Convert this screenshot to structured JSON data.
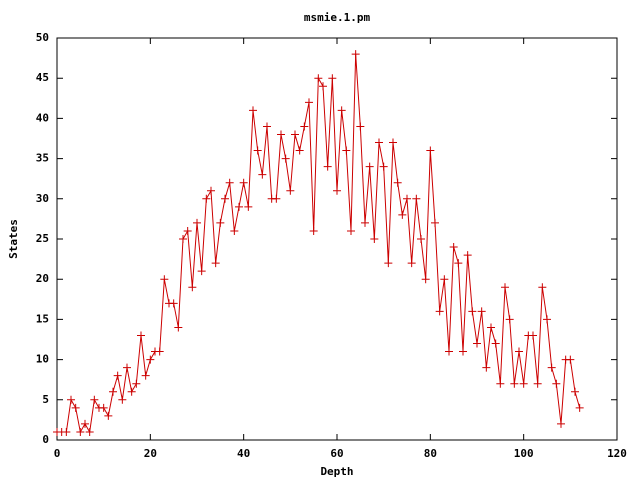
{
  "chart_data": {
    "type": "line",
    "title": "msmie.1.pm",
    "x_label": "Depth",
    "y_label": "States",
    "x": [
      0,
      1,
      2,
      3,
      4,
      5,
      6,
      7,
      8,
      9,
      10,
      11,
      12,
      13,
      14,
      15,
      16,
      17,
      18,
      19,
      20,
      21,
      22,
      23,
      24,
      25,
      26,
      27,
      28,
      29,
      30,
      31,
      32,
      33,
      34,
      35,
      36,
      37,
      38,
      39,
      40,
      41,
      42,
      43,
      44,
      45,
      46,
      47,
      48,
      49,
      50,
      51,
      52,
      53,
      54,
      55,
      56,
      57,
      58,
      59,
      60,
      61,
      62,
      63,
      64,
      65,
      66,
      67,
      68,
      69,
      70,
      71,
      72,
      73,
      74,
      75,
      76,
      77,
      78,
      79,
      80,
      81,
      82,
      83,
      84,
      85,
      86,
      87,
      88,
      89,
      90,
      91,
      92,
      93,
      94,
      95,
      96,
      97,
      98,
      99,
      100,
      101,
      102,
      103,
      104,
      105,
      106,
      107,
      108,
      109,
      110,
      111,
      112
    ],
    "series": [
      {
        "color": "#cc0000",
        "values": [
          1,
          1,
          1,
          5,
          4,
          1,
          2,
          1,
          5,
          4,
          4,
          3,
          6,
          8,
          5,
          9,
          6,
          7,
          13,
          8,
          10,
          11,
          11,
          20,
          17,
          17,
          14,
          25,
          26,
          19,
          27,
          21,
          30,
          31,
          22,
          27,
          30,
          32,
          26,
          29,
          32,
          29,
          41,
          36,
          33,
          39,
          30,
          30,
          38,
          35,
          31,
          38,
          36,
          39,
          42,
          26,
          45,
          44,
          34,
          45,
          31,
          41,
          36,
          26,
          48,
          39,
          27,
          34,
          25,
          37,
          34,
          22,
          37,
          32,
          28,
          30,
          22,
          30,
          25,
          20,
          36,
          27,
          16,
          20,
          11,
          24,
          22,
          11,
          23,
          16,
          12,
          16,
          9,
          14,
          12,
          7,
          19,
          15,
          7,
          11,
          7,
          13,
          13,
          7,
          19,
          15,
          9,
          7,
          2,
          10,
          10,
          6,
          4
        ]
      }
    ],
    "xlim": [
      0,
      120
    ],
    "ylim": [
      0,
      50
    ],
    "xticks": [
      0,
      20,
      40,
      60,
      80,
      100,
      120
    ],
    "yticks": [
      0,
      5,
      10,
      15,
      20,
      25,
      30,
      35,
      40,
      45,
      50
    ]
  }
}
